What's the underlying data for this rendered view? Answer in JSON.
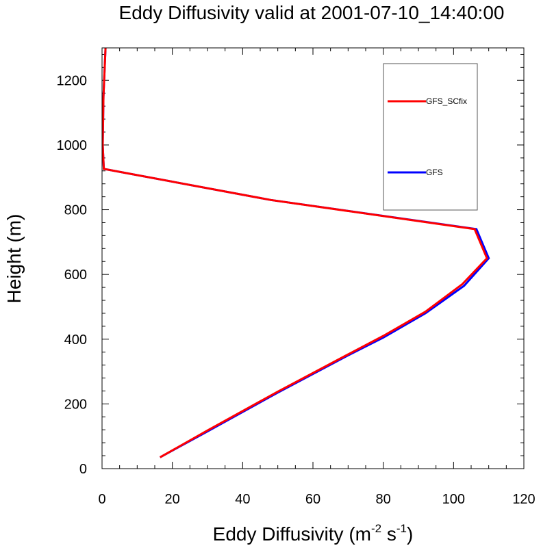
{
  "chart_data": {
    "type": "line",
    "title": "Eddy Diffusivity valid at 2001-07-10_14:40:00",
    "xlabel_main": "Eddy Diffusivity (m",
    "xlabel_sup1": "-2",
    "xlabel_mid": " s",
    "xlabel_sup2": "-1",
    "xlabel_end": ")",
    "ylabel": "Height (m)",
    "xlim": [
      0,
      120
    ],
    "ylim": [
      0,
      1300
    ],
    "x_ticks": [
      "0",
      "20",
      "40",
      "60",
      "80",
      "100",
      "120"
    ],
    "y_ticks": [
      "0",
      "200",
      "400",
      "600",
      "800",
      "1000",
      "1200"
    ],
    "legend_position": "top-right",
    "series": [
      {
        "name": "GFS",
        "color": "#0000ff",
        "points": [
          [
            16.5,
            35
          ],
          [
            30,
            115
          ],
          [
            50,
            235
          ],
          [
            70,
            350
          ],
          [
            80,
            405
          ],
          [
            92,
            480
          ],
          [
            103,
            565
          ],
          [
            110,
            650
          ],
          [
            106.5,
            740
          ],
          [
            48,
            830
          ],
          [
            0.5,
            926
          ],
          [
            0.2,
            1000
          ],
          [
            0.4,
            1150
          ],
          [
            1.0,
            1300
          ]
        ]
      },
      {
        "name": "GFS_SCfix",
        "color": "#ff0000",
        "points": [
          [
            16.5,
            35
          ],
          [
            30,
            118
          ],
          [
            50,
            238
          ],
          [
            70,
            353
          ],
          [
            80,
            410
          ],
          [
            92,
            485
          ],
          [
            102.5,
            570
          ],
          [
            109.5,
            650
          ],
          [
            106,
            740
          ],
          [
            48,
            830
          ],
          [
            0.5,
            926
          ],
          [
            0.2,
            1000
          ],
          [
            0.4,
            1150
          ],
          [
            1.0,
            1300
          ]
        ]
      }
    ],
    "legend": [
      {
        "label": "GFS_SCfix",
        "color": "#ff0000"
      },
      {
        "label": "GFS",
        "color": "#0000ff"
      }
    ]
  }
}
